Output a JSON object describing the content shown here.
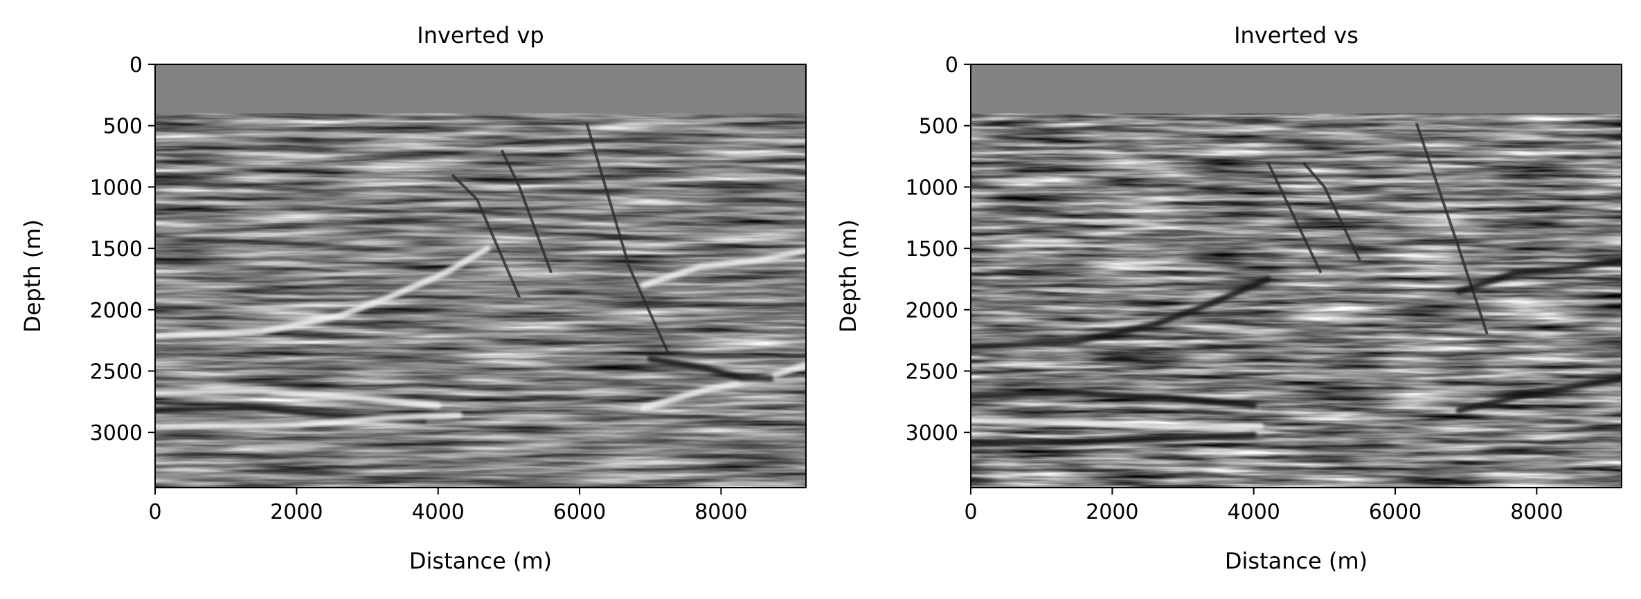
{
  "chart_data": [
    {
      "type": "heatmap",
      "title": "Inverted vp",
      "xlabel": "Distance (m)",
      "ylabel": "Depth (m)",
      "xlim": [
        0,
        9200
      ],
      "ylim": [
        3450,
        0
      ],
      "xticks": [
        0,
        2000,
        4000,
        6000,
        8000
      ],
      "yticks": [
        0,
        500,
        1000,
        1500,
        2000,
        2500,
        3000
      ],
      "colormap": "gray",
      "water_layer_depth": 400,
      "fault_traces": [
        [
          [
            4200,
            900
          ],
          [
            4550,
            1100
          ],
          [
            5150,
            1900
          ]
        ],
        [
          [
            4900,
            700
          ],
          [
            5150,
            1000
          ],
          [
            5600,
            1700
          ]
        ],
        [
          [
            6100,
            480
          ],
          [
            6700,
            1650
          ],
          [
            7250,
            2350
          ]
        ]
      ],
      "strong_reflectors": [
        {
          "polarity": "bright",
          "points": [
            [
              0,
              2220
            ],
            [
              1500,
              2180
            ],
            [
              2600,
              2050
            ],
            [
              3300,
              1900
            ],
            [
              4100,
              1700
            ],
            [
              4700,
              1500
            ]
          ]
        },
        {
          "polarity": "bright",
          "points": [
            [
              0,
              2680
            ],
            [
              1500,
              2660
            ],
            [
              2900,
              2720
            ],
            [
              4000,
              2780
            ]
          ]
        },
        {
          "polarity": "dark",
          "points": [
            [
              0,
              2820
            ],
            [
              1400,
              2800
            ],
            [
              2500,
              2860
            ],
            [
              3800,
              2900
            ]
          ]
        },
        {
          "polarity": "bright",
          "points": [
            [
              0,
              2950
            ],
            [
              2000,
              2940
            ],
            [
              3300,
              2880
            ],
            [
              4300,
              2860
            ]
          ]
        },
        {
          "polarity": "bright",
          "points": [
            [
              6900,
              2800
            ],
            [
              7800,
              2650
            ],
            [
              8600,
              2560
            ],
            [
              9200,
              2450
            ]
          ]
        },
        {
          "polarity": "dark",
          "points": [
            [
              7000,
              2400
            ],
            [
              7800,
              2480
            ],
            [
              8300,
              2560
            ],
            [
              8700,
              2560
            ]
          ]
        },
        {
          "polarity": "bright",
          "points": [
            [
              6900,
              1800
            ],
            [
              7700,
              1650
            ],
            [
              8500,
              1600
            ],
            [
              9200,
              1520
            ]
          ]
        }
      ]
    },
    {
      "type": "heatmap",
      "title": "Inverted vs",
      "xlabel": "Distance (m)",
      "ylabel": "Depth (m)",
      "xlim": [
        0,
        9200
      ],
      "ylim": [
        3450,
        0
      ],
      "xticks": [
        0,
        2000,
        4000,
        6000,
        8000
      ],
      "yticks": [
        0,
        500,
        1000,
        1500,
        2000,
        2500,
        3000
      ],
      "colormap": "gray",
      "water_layer_depth": 400,
      "fault_traces": [
        [
          [
            4200,
            800
          ],
          [
            4450,
            1100
          ],
          [
            4950,
            1700
          ]
        ],
        [
          [
            4700,
            800
          ],
          [
            5000,
            1000
          ],
          [
            5500,
            1600
          ]
        ],
        [
          [
            6300,
            480
          ],
          [
            6900,
            1500
          ],
          [
            7300,
            2200
          ]
        ]
      ],
      "strong_reflectors": [
        {
          "polarity": "dark",
          "points": [
            [
              0,
              2300
            ],
            [
              1500,
              2260
            ],
            [
              2600,
              2120
            ],
            [
              3400,
              1950
            ],
            [
              4200,
              1750
            ]
          ]
        },
        {
          "polarity": "dark",
          "points": [
            [
              0,
              2700
            ],
            [
              1500,
              2680
            ],
            [
              2900,
              2720
            ],
            [
              4000,
              2780
            ]
          ]
        },
        {
          "polarity": "bright",
          "points": [
            [
              0,
              2900
            ],
            [
              1500,
              2920
            ],
            [
              2800,
              2960
            ],
            [
              4100,
              2950
            ]
          ]
        },
        {
          "polarity": "dark",
          "points": [
            [
              0,
              3100
            ],
            [
              1500,
              3080
            ],
            [
              2800,
              3050
            ],
            [
              4000,
              3020
            ]
          ]
        },
        {
          "polarity": "dark",
          "points": [
            [
              6900,
              2820
            ],
            [
              7800,
              2700
            ],
            [
              8600,
              2620
            ],
            [
              9200,
              2560
            ]
          ]
        },
        {
          "polarity": "dark",
          "points": [
            [
              6900,
              1850
            ],
            [
              7700,
              1700
            ],
            [
              8500,
              1660
            ],
            [
              9200,
              1600
            ]
          ]
        }
      ]
    }
  ]
}
